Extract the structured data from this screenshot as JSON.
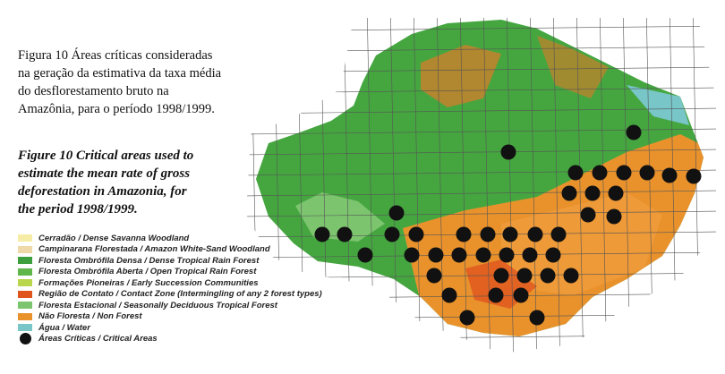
{
  "caption_pt": {
    "lines": [
      "Figura 10  Áreas críticas consideradas",
      "na geração da estimativa da taxa média",
      "do desflorestamento bruto na",
      "Amazônia, para o período 1998/1999."
    ]
  },
  "caption_en": {
    "lines": [
      "Figure 10  Critical areas used to",
      "estimate the mean rate of gross",
      "deforestation in Amazonia, for",
      "the period 1998/1999."
    ]
  },
  "legend": {
    "items": [
      {
        "label": "Cerradão / Dense Savanna Woodland",
        "color": "#f6eca6"
      },
      {
        "label": "Campinarana Florestada / Amazon White-Sand Woodland",
        "color": "#efd9a8"
      },
      {
        "label": "Floresta Ombrófila Densa / Dense Tropical Rain Forest",
        "color": "#3c9e3c"
      },
      {
        "label": "Floresta Ombrófila Aberta / Open Tropical Rain Forest",
        "color": "#5fb64a"
      },
      {
        "label": "Formações Pioneiras / Early Succession Communities",
        "color": "#b9d64c"
      },
      {
        "label": "Região de Contato / Contact Zone (Intermingling of any 2 forest types)",
        "color": "#e0551e"
      },
      {
        "label": "Floresta Estacional / Seasonally Deciduous Tropical Forest",
        "color": "#7cc56e"
      },
      {
        "label": "Não Floresta / Non Forest",
        "color": "#e9922c"
      },
      {
        "label": "Água / Water",
        "color": "#78c6c8"
      },
      {
        "label": "Áreas Críticas / Critical Areas"
      }
    ]
  }
}
